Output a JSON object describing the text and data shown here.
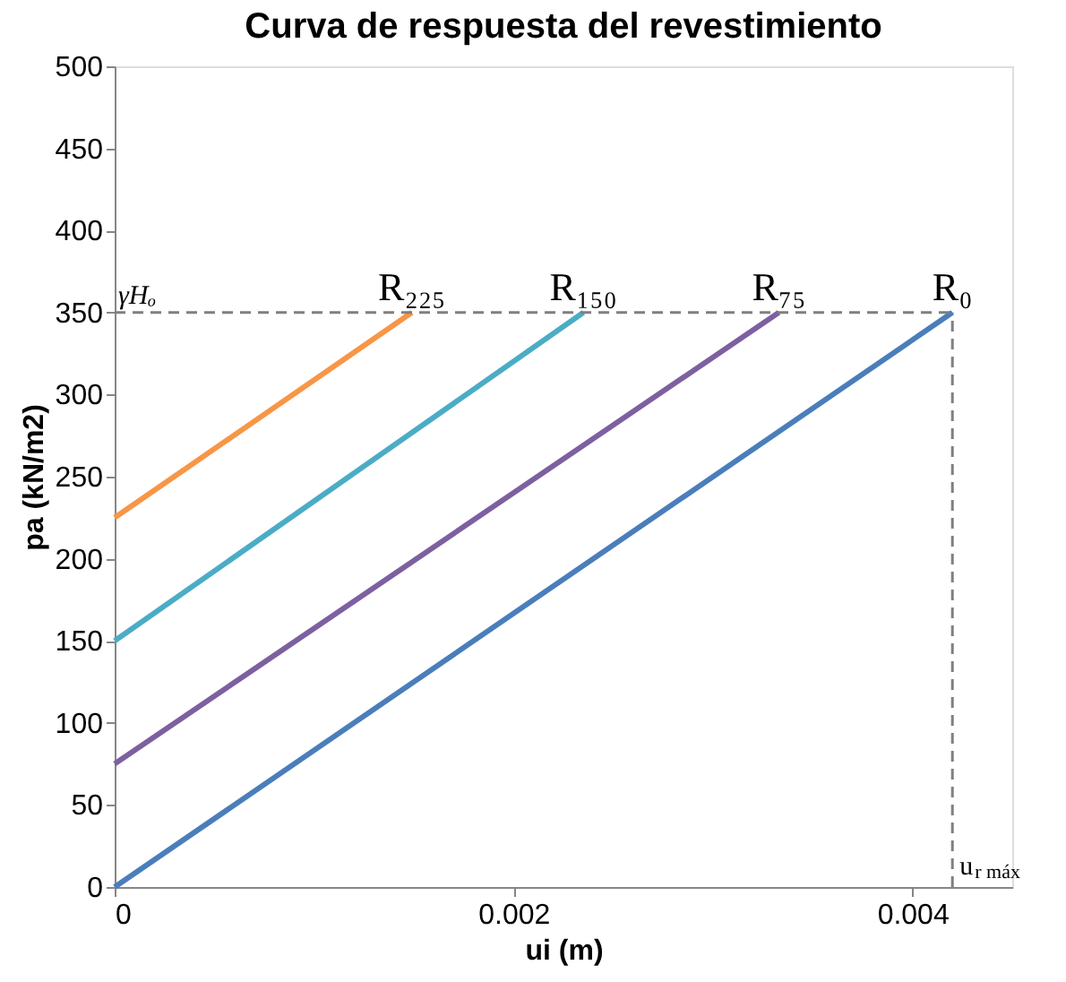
{
  "chart_data": {
    "type": "line",
    "title": "Curva de respuesta del revestimiento",
    "xlabel": "ui (m)",
    "ylabel": "pa (kN/m2)",
    "series": [
      {
        "name": "R₂₂₅",
        "color": "#f79646",
        "x": [
          0,
          0.00149
        ],
        "values": [
          225,
          350
        ]
      },
      {
        "name": "R₁₅₀",
        "color": "#4bacc6",
        "x": [
          0,
          0.00235
        ],
        "values": [
          150,
          350
        ]
      },
      {
        "name": "R₇₅",
        "color": "#7d60a0",
        "x": [
          0,
          0.00333
        ],
        "values": [
          75,
          350
        ]
      },
      {
        "name": "R₀",
        "color": "#4a7ebb",
        "x": [
          0,
          0.0042
        ],
        "values": [
          0,
          350
        ]
      }
    ],
    "xlim": [
      0,
      0.0045
    ],
    "xticks": [
      0,
      0.002,
      0.004
    ],
    "ylim": [
      0,
      500
    ],
    "yticks": [
      0,
      50,
      100,
      150,
      200,
      250,
      300,
      350,
      400,
      450,
      500
    ],
    "ref_lines": [
      {
        "axis": "y",
        "value": 350,
        "label": "γHₒ",
        "color": "#7f7f7f",
        "line_style": "dashed"
      },
      {
        "axis": "x",
        "value": 0.0042,
        "label": "u$_{r máx}$",
        "color": "#7f7f7f",
        "line_style": "dashed"
      }
    ],
    "grid": false,
    "legend": false,
    "marker": "none",
    "line_style": "solid"
  }
}
